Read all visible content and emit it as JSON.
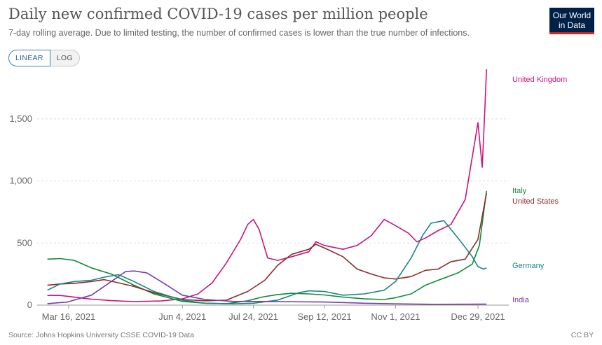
{
  "header": {
    "title": "Daily new confirmed COVID-19 cases per million people",
    "subtitle": "7-day rolling average. Due to limited testing, the number of confirmed cases is lower than the true number of infections.",
    "logo_line1": "Our World",
    "logo_line2": "in Data"
  },
  "controls": {
    "linear_label": "LINEAR",
    "log_label": "LOG",
    "active": "LINEAR"
  },
  "footer": {
    "source": "Source: Johns Hopkins University CSSE COVID-19 Data",
    "license": "CC BY"
  },
  "chart_data": {
    "type": "line",
    "title": "Daily new confirmed COVID-19 cases per million people",
    "subtitle": "7-day rolling average. Due to limited testing, the number of confirmed cases is lower than the true number of infections.",
    "xlabel": "",
    "ylabel": "",
    "x_range": [
      "2021-02-29",
      "2022-01-05"
    ],
    "ylim": [
      0,
      1950
    ],
    "y_ticks": [
      0,
      500,
      1000,
      1500
    ],
    "y_tick_labels": [
      "0",
      "500",
      "1,000",
      "1,500"
    ],
    "x_ticks": [
      "2021-03-16",
      "2021-06-04",
      "2021-07-24",
      "2021-09-12",
      "2021-11-01",
      "2021-12-29"
    ],
    "x_tick_labels": [
      "Mar 16, 2021",
      "Jun 4, 2021",
      "Jul 24, 2021",
      "Sep 12, 2021",
      "Nov 1, 2021",
      "Dec 29, 2021"
    ],
    "grid": "horizontal-dashed",
    "legend": "end-of-line labels",
    "series": [
      {
        "name": "United Kingdom",
        "color": "#c9157d",
        "points": [
          [
            "2021-03-01",
            78
          ],
          [
            "2021-03-10",
            78
          ],
          [
            "2021-03-20",
            64
          ],
          [
            "2021-04-01",
            48
          ],
          [
            "2021-04-15",
            36
          ],
          [
            "2021-05-01",
            28
          ],
          [
            "2021-05-20",
            33
          ],
          [
            "2021-06-04",
            50
          ],
          [
            "2021-06-15",
            90
          ],
          [
            "2021-06-25",
            180
          ],
          [
            "2021-07-05",
            340
          ],
          [
            "2021-07-15",
            530
          ],
          [
            "2021-07-20",
            650
          ],
          [
            "2021-07-24",
            690
          ],
          [
            "2021-07-28",
            610
          ],
          [
            "2021-08-03",
            380
          ],
          [
            "2021-08-10",
            360
          ],
          [
            "2021-08-20",
            390
          ],
          [
            "2021-09-01",
            430
          ],
          [
            "2021-09-06",
            510
          ],
          [
            "2021-09-12",
            480
          ],
          [
            "2021-09-25",
            450
          ],
          [
            "2021-10-05",
            480
          ],
          [
            "2021-10-15",
            560
          ],
          [
            "2021-10-24",
            690
          ],
          [
            "2021-11-01",
            640
          ],
          [
            "2021-11-10",
            580
          ],
          [
            "2021-11-16",
            510
          ],
          [
            "2021-11-22",
            540
          ],
          [
            "2021-12-01",
            600
          ],
          [
            "2021-12-10",
            650
          ],
          [
            "2021-12-20",
            850
          ],
          [
            "2021-12-29",
            1470
          ],
          [
            "2022-01-01",
            1110
          ],
          [
            "2022-01-03",
            1610
          ],
          [
            "2022-01-04",
            1900
          ]
        ]
      },
      {
        "name": "Italy",
        "color": "#0d8b3a",
        "points": [
          [
            "2021-03-01",
            370
          ],
          [
            "2021-03-10",
            375
          ],
          [
            "2021-03-20",
            360
          ],
          [
            "2021-04-01",
            300
          ],
          [
            "2021-04-15",
            250
          ],
          [
            "2021-05-01",
            160
          ],
          [
            "2021-05-15",
            90
          ],
          [
            "2021-06-04",
            30
          ],
          [
            "2021-06-20",
            15
          ],
          [
            "2021-07-05",
            12
          ],
          [
            "2021-07-20",
            35
          ],
          [
            "2021-07-30",
            65
          ],
          [
            "2021-08-10",
            85
          ],
          [
            "2021-08-20",
            95
          ],
          [
            "2021-09-01",
            90
          ],
          [
            "2021-09-12",
            82
          ],
          [
            "2021-09-25",
            65
          ],
          [
            "2021-10-10",
            50
          ],
          [
            "2021-10-24",
            45
          ],
          [
            "2021-11-01",
            60
          ],
          [
            "2021-11-12",
            90
          ],
          [
            "2021-11-22",
            160
          ],
          [
            "2021-12-01",
            200
          ],
          [
            "2021-12-15",
            260
          ],
          [
            "2021-12-25",
            330
          ],
          [
            "2021-12-30",
            480
          ],
          [
            "2022-01-04",
            920
          ]
        ]
      },
      {
        "name": "United States",
        "color": "#8b2b2e",
        "points": [
          [
            "2021-03-01",
            160
          ],
          [
            "2021-03-10",
            170
          ],
          [
            "2021-03-20",
            175
          ],
          [
            "2021-04-01",
            190
          ],
          [
            "2021-04-10",
            205
          ],
          [
            "2021-04-20",
            180
          ],
          [
            "2021-05-01",
            150
          ],
          [
            "2021-05-15",
            100
          ],
          [
            "2021-06-04",
            45
          ],
          [
            "2021-06-20",
            35
          ],
          [
            "2021-07-05",
            40
          ],
          [
            "2021-07-20",
            110
          ],
          [
            "2021-08-01",
            200
          ],
          [
            "2021-08-10",
            320
          ],
          [
            "2021-08-20",
            410
          ],
          [
            "2021-09-01",
            450
          ],
          [
            "2021-09-06",
            490
          ],
          [
            "2021-09-12",
            460
          ],
          [
            "2021-09-25",
            390
          ],
          [
            "2021-10-05",
            290
          ],
          [
            "2021-10-15",
            250
          ],
          [
            "2021-10-24",
            220
          ],
          [
            "2021-11-01",
            210
          ],
          [
            "2021-11-12",
            230
          ],
          [
            "2021-11-22",
            280
          ],
          [
            "2021-12-01",
            290
          ],
          [
            "2021-12-10",
            350
          ],
          [
            "2021-12-20",
            370
          ],
          [
            "2021-12-29",
            530
          ],
          [
            "2022-01-04",
            900
          ]
        ]
      },
      {
        "name": "Germany",
        "color": "#18867f",
        "points": [
          [
            "2021-03-01",
            120
          ],
          [
            "2021-03-10",
            170
          ],
          [
            "2021-03-20",
            190
          ],
          [
            "2021-04-01",
            200
          ],
          [
            "2021-04-10",
            225
          ],
          [
            "2021-04-20",
            245
          ],
          [
            "2021-05-01",
            190
          ],
          [
            "2021-05-15",
            110
          ],
          [
            "2021-06-04",
            40
          ],
          [
            "2021-06-20",
            15
          ],
          [
            "2021-07-10",
            10
          ],
          [
            "2021-07-24",
            15
          ],
          [
            "2021-08-10",
            40
          ],
          [
            "2021-08-25",
            100
          ],
          [
            "2021-09-01",
            115
          ],
          [
            "2021-09-12",
            110
          ],
          [
            "2021-09-25",
            80
          ],
          [
            "2021-10-10",
            90
          ],
          [
            "2021-10-24",
            120
          ],
          [
            "2021-11-01",
            190
          ],
          [
            "2021-11-12",
            380
          ],
          [
            "2021-11-20",
            560
          ],
          [
            "2021-11-26",
            660
          ],
          [
            "2021-12-05",
            680
          ],
          [
            "2021-12-15",
            540
          ],
          [
            "2021-12-25",
            390
          ],
          [
            "2021-12-29",
            310
          ],
          [
            "2022-01-02",
            290
          ],
          [
            "2022-01-04",
            300
          ]
        ]
      },
      {
        "name": "India",
        "color": "#7b3aa8",
        "points": [
          [
            "2021-03-01",
            12
          ],
          [
            "2021-03-15",
            25
          ],
          [
            "2021-04-01",
            80
          ],
          [
            "2021-04-15",
            190
          ],
          [
            "2021-04-25",
            270
          ],
          [
            "2021-05-01",
            275
          ],
          [
            "2021-05-10",
            260
          ],
          [
            "2021-05-20",
            190
          ],
          [
            "2021-06-04",
            80
          ],
          [
            "2021-06-20",
            45
          ],
          [
            "2021-07-10",
            30
          ],
          [
            "2021-08-10",
            28
          ],
          [
            "2021-09-12",
            25
          ],
          [
            "2021-10-10",
            15
          ],
          [
            "2021-11-01",
            10
          ],
          [
            "2021-12-01",
            6
          ],
          [
            "2022-01-04",
            8
          ]
        ]
      }
    ]
  }
}
